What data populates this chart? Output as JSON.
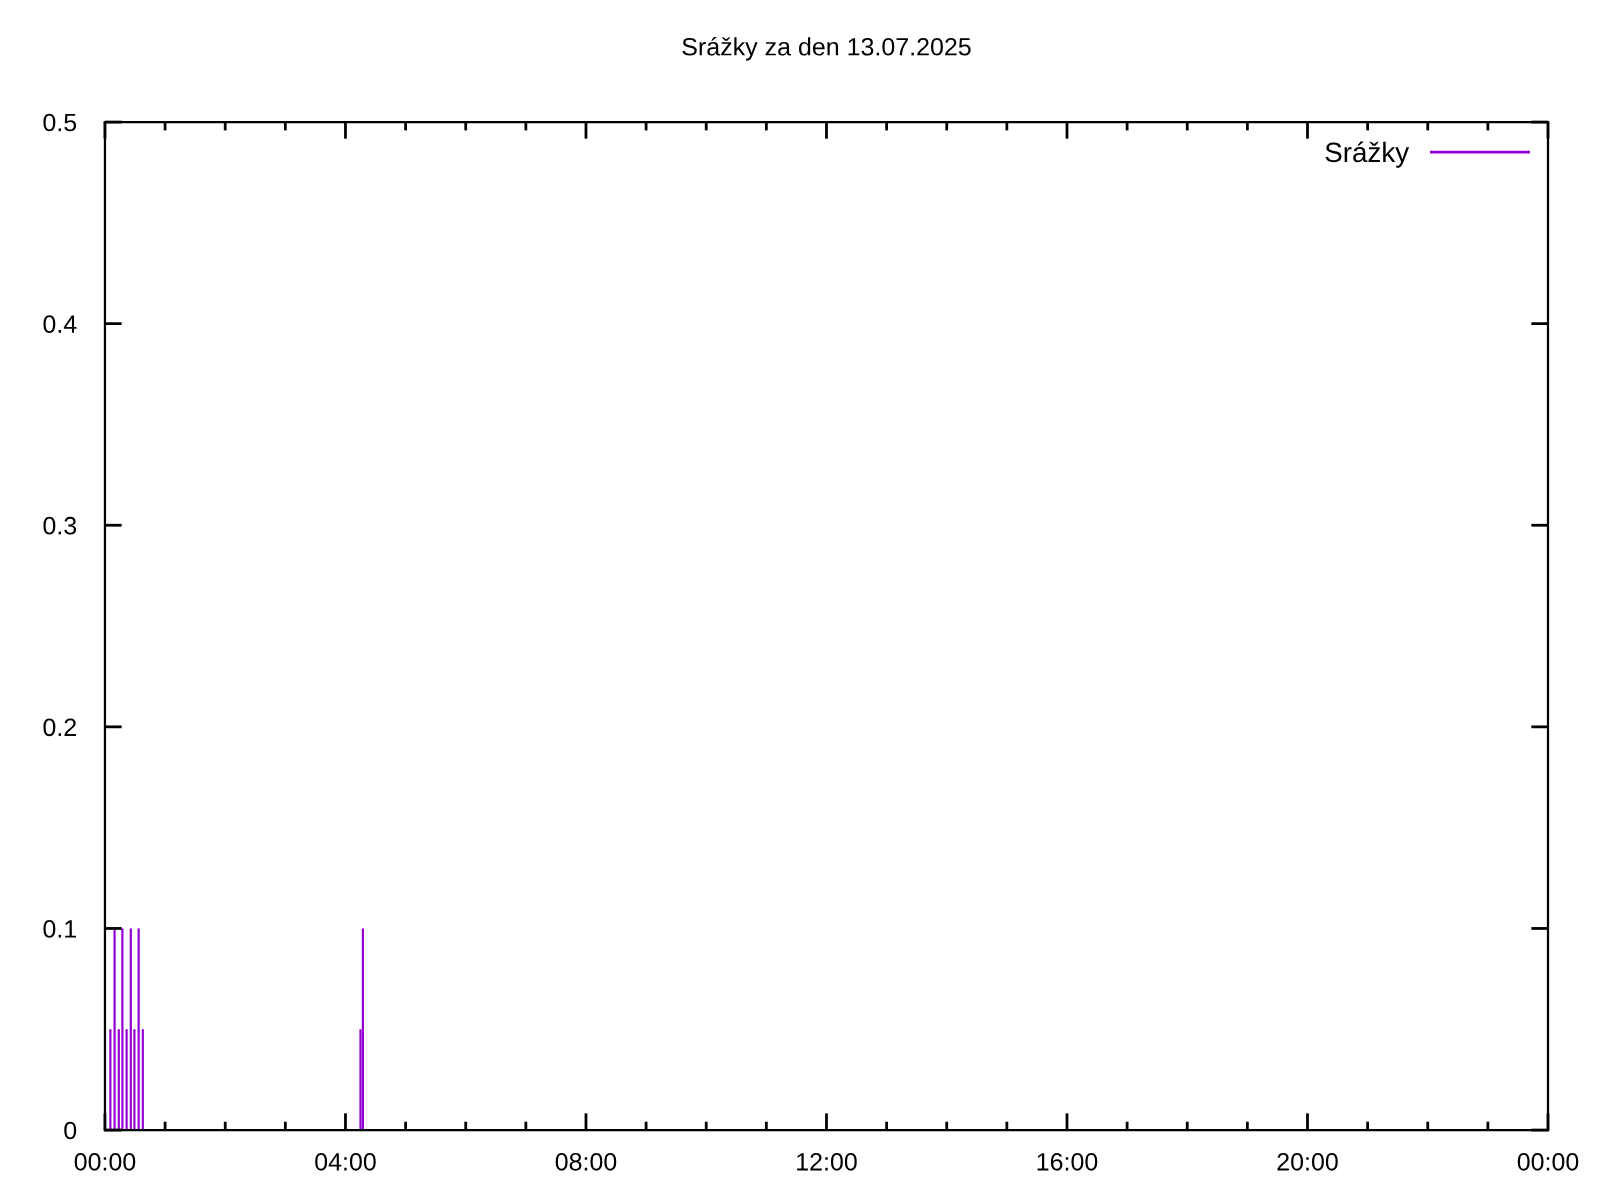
{
  "chart_data": {
    "type": "bar",
    "title": "Srážky za den 13.07.2025",
    "x": [
      0.09,
      0.16,
      0.23,
      0.29,
      0.36,
      0.43,
      0.49,
      0.56,
      0.63,
      4.25,
      4.29
    ],
    "series": [
      {
        "name": "Srážky",
        "color": "#9400d3",
        "values": [
          0.05,
          0.1,
          0.05,
          0.1,
          0.05,
          0.1,
          0.05,
          0.1,
          0.05,
          0.05,
          0.1
        ]
      }
    ],
    "xlim": [
      0,
      24
    ],
    "xticks": [
      {
        "value": 0,
        "label": "00:00"
      },
      {
        "value": 4,
        "label": "04:00"
      },
      {
        "value": 8,
        "label": "08:00"
      },
      {
        "value": 12,
        "label": "12:00"
      },
      {
        "value": 16,
        "label": "16:00"
      },
      {
        "value": 20,
        "label": "20:00"
      },
      {
        "value": 24,
        "label": "00:00"
      }
    ],
    "ylim": [
      0,
      0.5
    ],
    "yticks": [
      0,
      0.1,
      0.2,
      0.3,
      0.4,
      0.5
    ],
    "legend": "top right"
  }
}
